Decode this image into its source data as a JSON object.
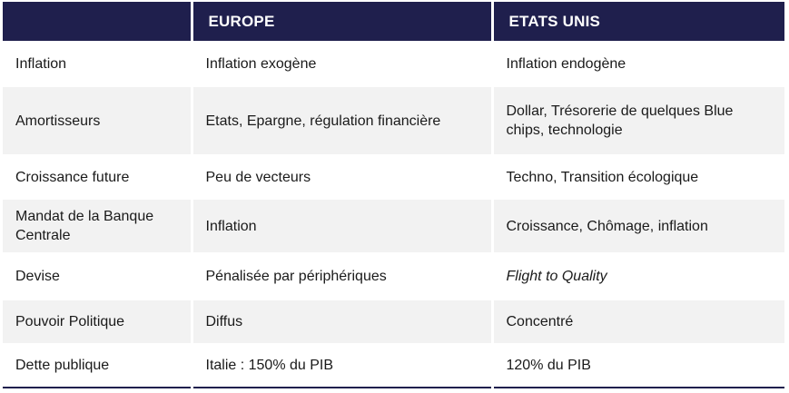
{
  "header": {
    "col1": "",
    "col2": "EUROPE",
    "col3": "ETATS UNIS"
  },
  "rows": [
    {
      "label": "Inflation",
      "europe": "Inflation exogène",
      "usa": "Inflation endogène"
    },
    {
      "label": "Amortisseurs",
      "europe": "Etats, Epargne, régulation financière",
      "usa": "Dollar, Trésorerie de quelques Blue chips, technologie"
    },
    {
      "label": "Croissance future",
      "europe": "Peu de vecteurs",
      "usa": "Techno, Transition écologique"
    },
    {
      "label": "Mandat de la Banque Centrale",
      "europe": "Inflation",
      "usa": "Croissance, Chômage, inflation"
    },
    {
      "label": "Devise",
      "europe": "Pénalisée par périphériques",
      "usa": "Flight to Quality"
    },
    {
      "label": "Pouvoir Politique",
      "europe": "Diffus",
      "usa": "Concentré"
    },
    {
      "label": "Dette publique",
      "europe": "Italie : 150% du PIB",
      "usa": "120% du PIB"
    }
  ],
  "colors": {
    "header_bg": "#1f1f4d",
    "header_text": "#ffffff",
    "row_alt_bg": "#f2f2f2",
    "row_bg": "#ffffff"
  }
}
